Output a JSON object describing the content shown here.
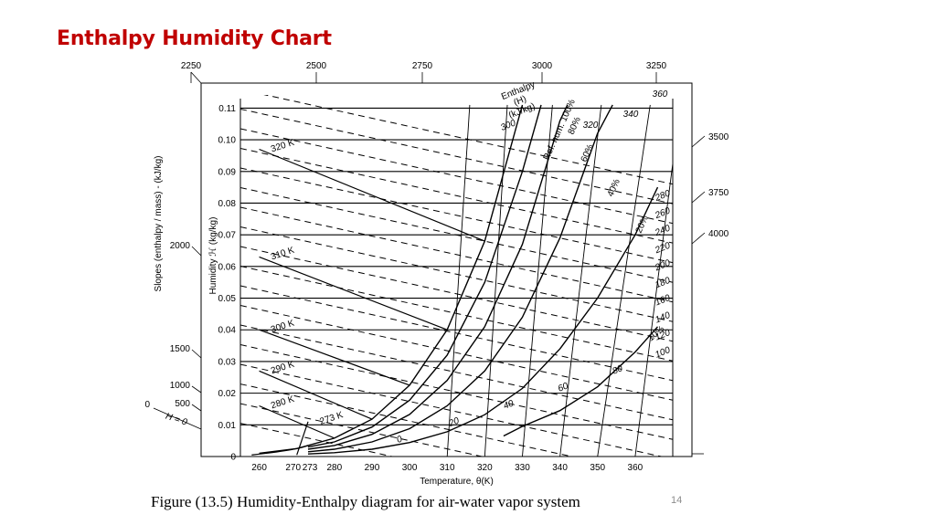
{
  "slide": {
    "title": "Enthalpy Humidity Chart",
    "caption": "Figure (13.5) Humidity-Enthalpy diagram for air-water vapor system",
    "page_number": "14",
    "title_color": "#c00000"
  },
  "chart_data": {
    "type": "line",
    "xlabel": "Temperature, θ(K)",
    "ylabel": "Humidity ℋ (kg/kg)",
    "left_scale_label": "Slopes (enthalpy / mass) - (kJ/kg)",
    "x_ticks": [
      260,
      270,
      273,
      280,
      290,
      300,
      310,
      320,
      330,
      340,
      350,
      360
    ],
    "y_ticks": [
      0,
      0.01,
      0.02,
      0.03,
      0.04,
      0.05,
      0.06,
      0.07,
      0.08,
      0.09,
      0.1,
      0.11
    ],
    "top_scale_ticks": [
      2250,
      2500,
      2750,
      3000,
      3250
    ],
    "right_scale_ticks": [
      3500,
      3750,
      4000
    ],
    "left_scale_ticks": [
      2000,
      1500,
      1000,
      500,
      0
    ],
    "left_scale_zero_label": "H = 0",
    "enthalpy_label": [
      "Enthalpy",
      "(H)",
      "(kJ/kg)"
    ],
    "enthalpy_lines": [
      0,
      20,
      40,
      60,
      80,
      100,
      120,
      140,
      160,
      180,
      200,
      220,
      240,
      260,
      280,
      300,
      320,
      340,
      360
    ],
    "relative_humidity_title": "Ref. hum. 100%",
    "relative_humidity": [
      {
        "name": "100%",
        "label": "Ref. hum. 100%",
        "points": [
          [
            260,
            0.001
          ],
          [
            270,
            0.0025
          ],
          [
            273,
            0.0035
          ],
          [
            280,
            0.0058
          ],
          [
            290,
            0.0118
          ],
          [
            300,
            0.0225
          ],
          [
            310,
            0.04
          ],
          [
            320,
            0.068
          ],
          [
            330,
            0.111
          ]
        ]
      },
      {
        "name": "80%",
        "label": "80%",
        "points": [
          [
            273,
            0.003
          ],
          [
            280,
            0.0046
          ],
          [
            290,
            0.0093
          ],
          [
            300,
            0.0178
          ],
          [
            310,
            0.032
          ],
          [
            320,
            0.055
          ],
          [
            330,
            0.09
          ],
          [
            335,
            0.111
          ]
        ]
      },
      {
        "name": "60%",
        "label": "60%",
        "points": [
          [
            273,
            0.0023
          ],
          [
            280,
            0.0035
          ],
          [
            290,
            0.007
          ],
          [
            300,
            0.0133
          ],
          [
            310,
            0.024
          ],
          [
            320,
            0.041
          ],
          [
            330,
            0.067
          ],
          [
            340,
            0.106
          ],
          [
            342,
            0.111
          ]
        ]
      },
      {
        "name": "40%",
        "label": "40%",
        "points": [
          [
            273,
            0.0015
          ],
          [
            280,
            0.0023
          ],
          [
            290,
            0.0046
          ],
          [
            300,
            0.0088
          ],
          [
            310,
            0.016
          ],
          [
            320,
            0.027
          ],
          [
            330,
            0.044
          ],
          [
            340,
            0.069
          ],
          [
            350,
            0.102
          ],
          [
            354,
            0.111
          ]
        ]
      },
      {
        "name": "20%",
        "label": "20%",
        "points": [
          [
            273,
            0.0008
          ],
          [
            280,
            0.0012
          ],
          [
            290,
            0.0023
          ],
          [
            300,
            0.0044
          ],
          [
            310,
            0.0078
          ],
          [
            320,
            0.0132
          ],
          [
            330,
            0.0215
          ],
          [
            340,
            0.034
          ],
          [
            350,
            0.05
          ],
          [
            360,
            0.07
          ],
          [
            366,
            0.085
          ]
        ]
      },
      {
        "name": "10%",
        "label": "10%",
        "points": [
          [
            325,
            0.0065
          ],
          [
            330,
            0.0095
          ],
          [
            340,
            0.0145
          ],
          [
            350,
            0.022
          ],
          [
            360,
            0.033
          ],
          [
            366,
            0.041
          ]
        ]
      }
    ],
    "adiabatic_lines": [
      {
        "label": "273 K",
        "from": [
          273,
          0.011
        ],
        "to": [
          270,
          0.0005
        ]
      },
      {
        "label": "280 K",
        "from": [
          260,
          0.016
        ],
        "to": [
          280,
          0.0058
        ]
      },
      {
        "label": "290 K",
        "from": [
          260,
          0.027
        ],
        "to": [
          290,
          0.0118
        ]
      },
      {
        "label": "300 K",
        "from": [
          260,
          0.04
        ],
        "to": [
          300,
          0.0225
        ]
      },
      {
        "label": "310 K",
        "from": [
          260,
          0.063
        ],
        "to": [
          310,
          0.04
        ]
      },
      {
        "label": "320 K",
        "from": [
          260,
          0.097
        ],
        "to": [
          320,
          0.068
        ]
      }
    ],
    "xlim": [
      255,
      370
    ],
    "ylim": [
      0,
      0.113
    ],
    "grid": true
  }
}
